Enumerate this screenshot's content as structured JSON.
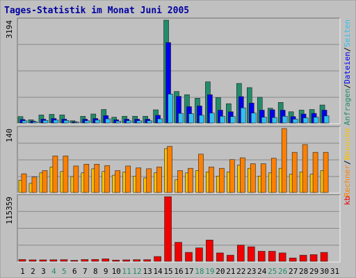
{
  "title": "Tages-Statistik im Monat Juni 2005",
  "colors": {
    "background": "#c0c0c0",
    "title": "#0000a0",
    "gridline": "#888888",
    "anfragen": "#218c6c",
    "dateien": "#0000f0",
    "seiten": "#30c0f0",
    "besuche": "#f8c000",
    "rechner": "#ff8000",
    "kb": "#f00000",
    "weekend_day": "#218c6c",
    "weekday_day": "#000000"
  },
  "chart_data": [
    {
      "type": "bar",
      "panel": "hits",
      "ymax_label": "3194",
      "ylim": [
        0,
        3194
      ],
      "categories": [
        "1",
        "2",
        "3",
        "4",
        "5",
        "6",
        "7",
        "8",
        "9",
        "10",
        "11",
        "12",
        "13",
        "14",
        "15",
        "16",
        "17",
        "18",
        "19",
        "20",
        "21",
        "22",
        "23",
        "24",
        "25",
        "26",
        "27",
        "28",
        "29",
        "30",
        "31"
      ],
      "right_label_parts": [
        {
          "text": "Anfragen",
          "color": "#218c6c"
        },
        {
          "text": "/",
          "color": "#000000"
        },
        {
          "text": "Dateien",
          "color": "#0000f0"
        },
        {
          "text": "/",
          "color": "#000000"
        },
        {
          "text": "Seiten",
          "color": "#30c0f0"
        }
      ],
      "series": [
        {
          "name": "Anfragen",
          "color": "#218c6c",
          "values": [
            200,
            100,
            250,
            270,
            250,
            70,
            210,
            280,
            420,
            180,
            210,
            210,
            210,
            410,
            3194,
            980,
            880,
            770,
            1280,
            790,
            600,
            1230,
            1100,
            800,
            460,
            640,
            350,
            400,
            420,
            560,
            0
          ]
        },
        {
          "name": "Dateien",
          "color": "#0000f0",
          "values": [
            110,
            60,
            120,
            140,
            120,
            40,
            120,
            140,
            230,
            100,
            120,
            120,
            120,
            240,
            2500,
            830,
            510,
            530,
            880,
            400,
            350,
            820,
            620,
            400,
            410,
            400,
            200,
            280,
            300,
            400,
            0
          ]
        },
        {
          "name": "Seiten",
          "color": "#30c0f0",
          "values": [
            70,
            40,
            80,
            90,
            80,
            25,
            70,
            90,
            130,
            60,
            70,
            70,
            70,
            130,
            900,
            300,
            290,
            240,
            310,
            210,
            200,
            470,
            310,
            180,
            170,
            210,
            120,
            160,
            180,
            220,
            0
          ]
        }
      ]
    },
    {
      "type": "bar",
      "panel": "visits",
      "ymax_label": "140",
      "ylim": [
        0,
        140
      ],
      "categories": [
        "1",
        "2",
        "3",
        "4",
        "5",
        "6",
        "7",
        "8",
        "9",
        "10",
        "11",
        "12",
        "13",
        "14",
        "15",
        "16",
        "17",
        "18",
        "19",
        "20",
        "21",
        "22",
        "23",
        "24",
        "25",
        "26",
        "27",
        "28",
        "29",
        "30",
        "31"
      ],
      "right_label_parts": [
        {
          "text": "Rechner",
          "color": "#ff8000"
        },
        {
          "text": "/",
          "color": "#000000"
        },
        {
          "text": "Besuche",
          "color": "#f8c000"
        }
      ],
      "series": [
        {
          "name": "Besuche",
          "color": "#f8c000",
          "values": [
            27,
            20,
            43,
            56,
            46,
            35,
            43,
            52,
            46,
            38,
            45,
            36,
            32,
            43,
            96,
            28,
            43,
            48,
            45,
            36,
            45,
            60,
            53,
            36,
            43,
            53,
            40,
            45,
            40,
            48,
            0
          ]
        },
        {
          "name": "Rechner",
          "color": "#ff8000",
          "values": [
            41,
            34,
            48,
            80,
            80,
            58,
            62,
            62,
            59,
            48,
            58,
            54,
            52,
            56,
            101,
            48,
            53,
            84,
            56,
            53,
            72,
            76,
            63,
            63,
            75,
            140,
            88,
            105,
            88,
            88,
            0
          ]
        }
      ]
    },
    {
      "type": "bar",
      "panel": "kb",
      "ymax_label": "115359",
      "ylim": [
        0,
        115359
      ],
      "categories": [
        "1",
        "2",
        "3",
        "4",
        "5",
        "6",
        "7",
        "8",
        "9",
        "10",
        "11",
        "12",
        "13",
        "14",
        "15",
        "16",
        "17",
        "18",
        "19",
        "20",
        "21",
        "22",
        "23",
        "24",
        "25",
        "26",
        "27",
        "28",
        "29",
        "30",
        "31"
      ],
      "right_label_parts": [
        {
          "text": "kb",
          "color": "#f00000"
        }
      ],
      "series": [
        {
          "name": "kb",
          "color": "#f00000",
          "values": [
            3200,
            2600,
            2600,
            2800,
            3000,
            1800,
            3200,
            3400,
            4400,
            2200,
            2600,
            3000,
            3000,
            8600,
            115359,
            34000,
            16000,
            24000,
            38000,
            15000,
            11000,
            29000,
            26000,
            18000,
            18000,
            15000,
            6000,
            11000,
            12000,
            16000,
            0
          ]
        }
      ]
    }
  ],
  "x_axis": {
    "days": [
      "1",
      "2",
      "3",
      "4",
      "5",
      "6",
      "7",
      "8",
      "9",
      "10",
      "11",
      "12",
      "13",
      "14",
      "15",
      "16",
      "17",
      "18",
      "19",
      "20",
      "21",
      "22",
      "23",
      "24",
      "25",
      "26",
      "27",
      "28",
      "29",
      "30",
      "31"
    ],
    "weekend_days": [
      "4",
      "5",
      "11",
      "12",
      "18",
      "19",
      "25",
      "26"
    ]
  }
}
